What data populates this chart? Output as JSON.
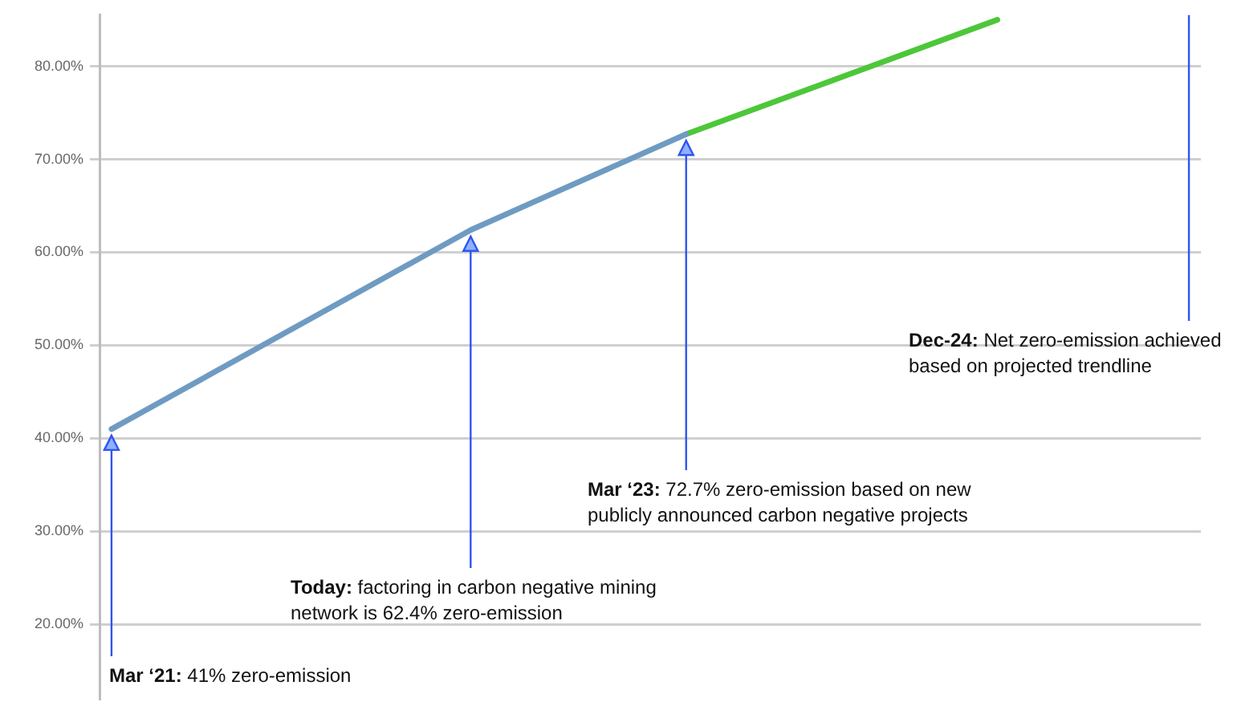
{
  "chart_data": {
    "type": "line",
    "categories": [
      null,
      null,
      null,
      null,
      null,
      null,
      null,
      null,
      null,
      null,
      null,
      null,
      null,
      null,
      null,
      null,
      null,
      null,
      null,
      null,
      null,
      null,
      null,
      null,
      null,
      null,
      null,
      null,
      null,
      null,
      null,
      null,
      null,
      null,
      null,
      null,
      null,
      null,
      null,
      null,
      null,
      null,
      null,
      null,
      null,
      null
    ],
    "series": [
      {
        "color": "#6f9bc2",
        "values": [
          41,
          null,
          null,
          null,
          null,
          null,
          null,
          null,
          null,
          null,
          null,
          null,
          null,
          null,
          null,
          62.4,
          null,
          null,
          null,
          null,
          null,
          null,
          null,
          null,
          72.7,
          null,
          null,
          null,
          null,
          null,
          null,
          null,
          null,
          null,
          null,
          null,
          null,
          null,
          null,
          null,
          null,
          null,
          null,
          null,
          null,
          null
        ]
      },
      {
        "color": "#4dc73a",
        "values": [
          null,
          null,
          null,
          null,
          null,
          null,
          null,
          null,
          null,
          null,
          null,
          null,
          null,
          null,
          null,
          null,
          null,
          null,
          null,
          null,
          null,
          null,
          null,
          null,
          72.7,
          null,
          null,
          null,
          null,
          null,
          null,
          null,
          null,
          null,
          null,
          null,
          null,
          85,
          null,
          null,
          null,
          null,
          null,
          null,
          null,
          null
        ]
      }
    ],
    "ylim": [
      12,
      85.5
    ],
    "yticks": [
      {
        "value": 20,
        "label": "20.00%"
      },
      {
        "value": 30,
        "label": "30.00%"
      },
      {
        "value": 40,
        "label": "40.00%"
      },
      {
        "value": 50,
        "label": "50.00%"
      },
      {
        "value": 60,
        "label": "60.00%"
      },
      {
        "value": 70,
        "label": "70.00%"
      },
      {
        "value": 80,
        "label": "80.00%"
      }
    ],
    "tick_labels": "y",
    "grid": "y",
    "legend": false,
    "marker": "none",
    "line_style": "solid",
    "annotations": [
      "Mar ‘21: 41% zero-emission",
      "Today: factoring in carbon negative mining\nnetwork is 62.4% zero-emission",
      "Mar ‘23: 72.7% zero-emission based on new\npublicly announced carbon negative projects",
      "Dec-24: Net zero-emission achieved\nbased on projected trendline"
    ]
  }
}
